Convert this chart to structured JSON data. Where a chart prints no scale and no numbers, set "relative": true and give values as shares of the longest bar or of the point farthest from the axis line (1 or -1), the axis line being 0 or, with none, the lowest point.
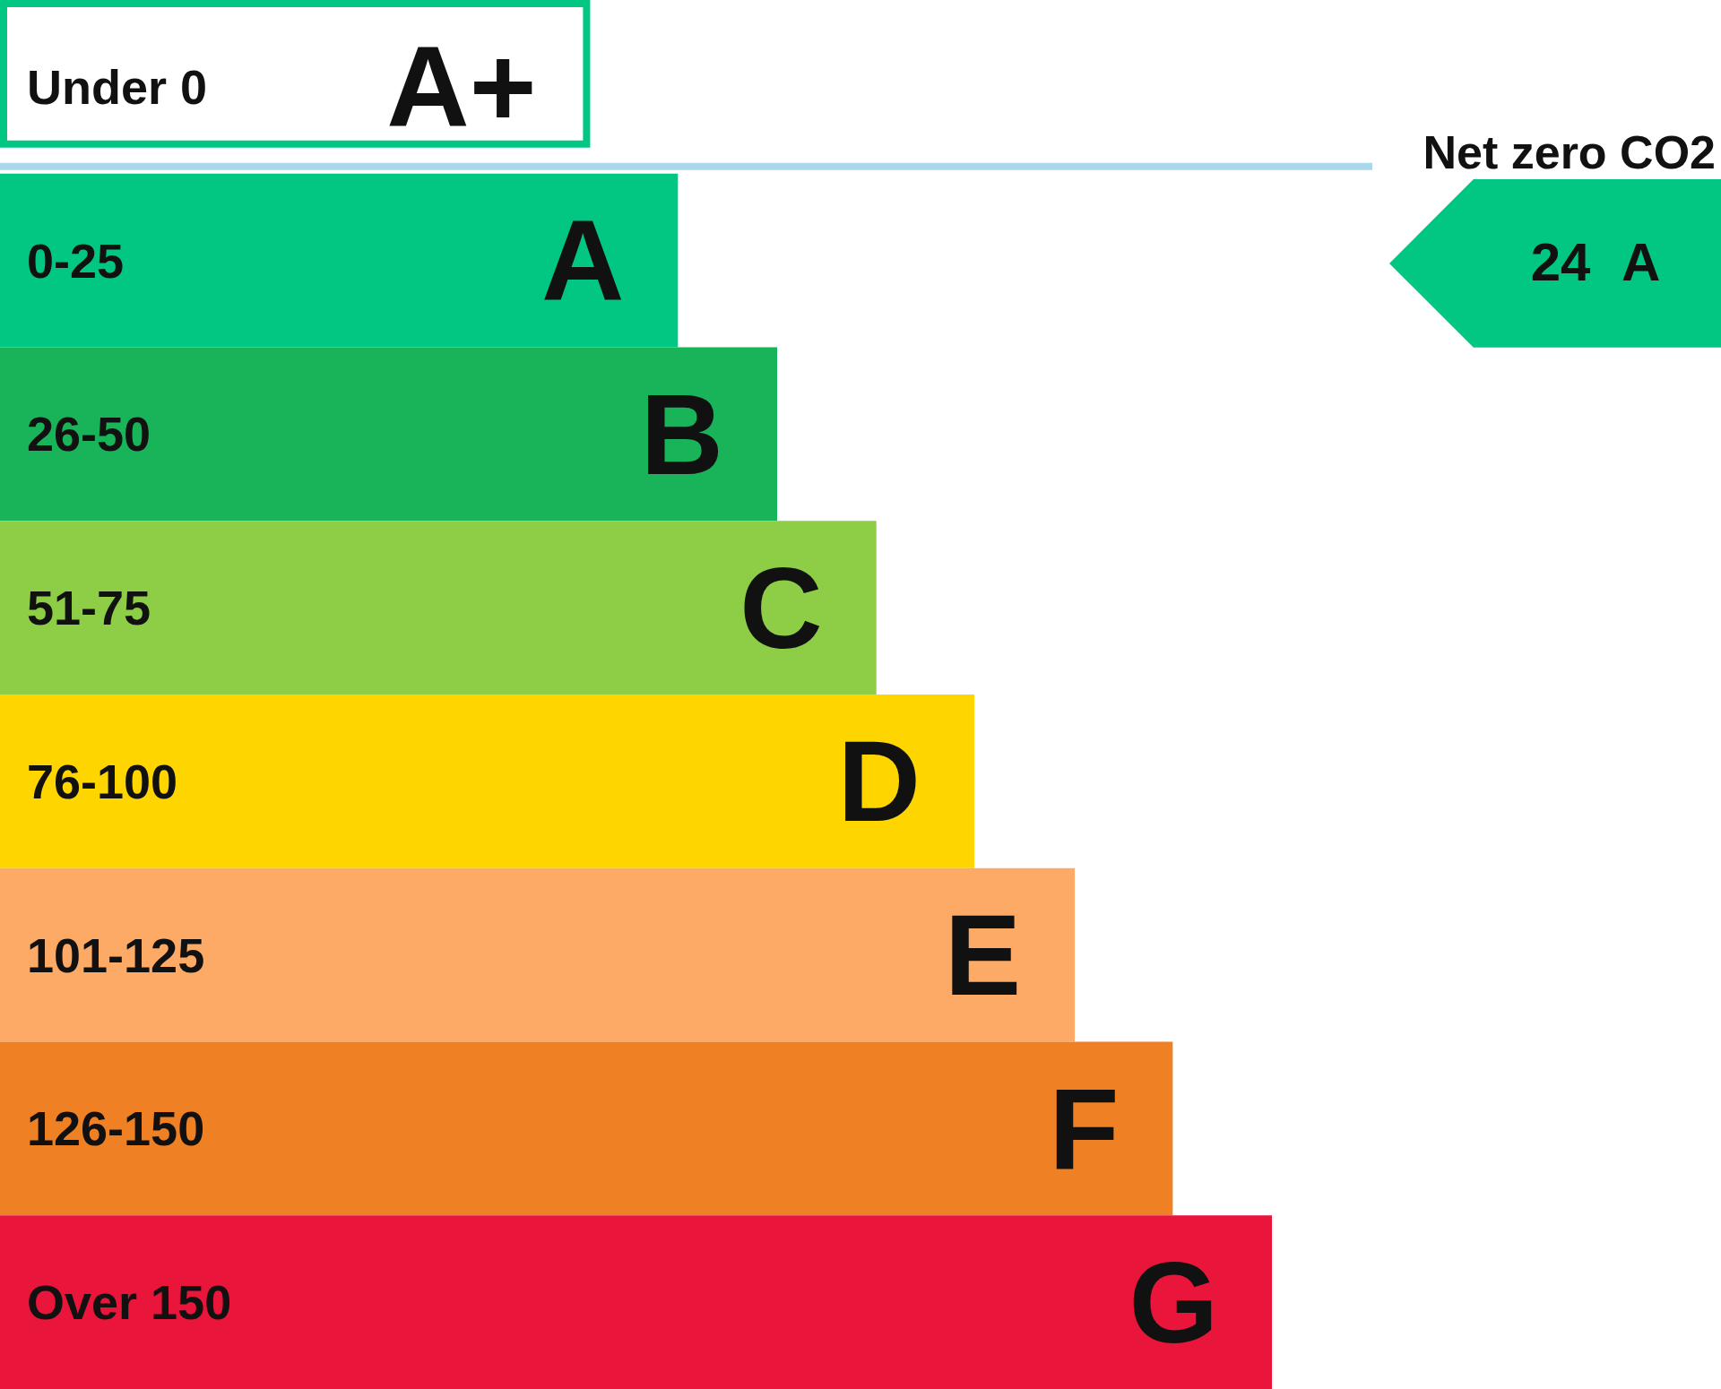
{
  "chart_data": {
    "type": "bar",
    "orientation": "horizontal",
    "relative": true,
    "categories": [
      "Under 0",
      "0-25",
      "26-50",
      "51-75",
      "76-100",
      "101-125",
      "126-150",
      "Over 150"
    ],
    "values": [
      0.464,
      0.533,
      0.611,
      0.689,
      0.766,
      0.845,
      0.922,
      1
    ],
    "colors": [
      "#02c782",
      "#02c782",
      "#19b459",
      "#8dce46",
      "#ffd500",
      "#fcaa65",
      "#ef8023",
      "#e9153b"
    ],
    "ref_lines": [
      {
        "axis": "y",
        "value": "0-25",
        "label": "Net zero CO2",
        "color": "#a8d8ea"
      }
    ],
    "annotations": [
      "A+",
      "A",
      "B",
      "C",
      "D",
      "E",
      "F",
      "G",
      "24 A"
    ]
  }
}
